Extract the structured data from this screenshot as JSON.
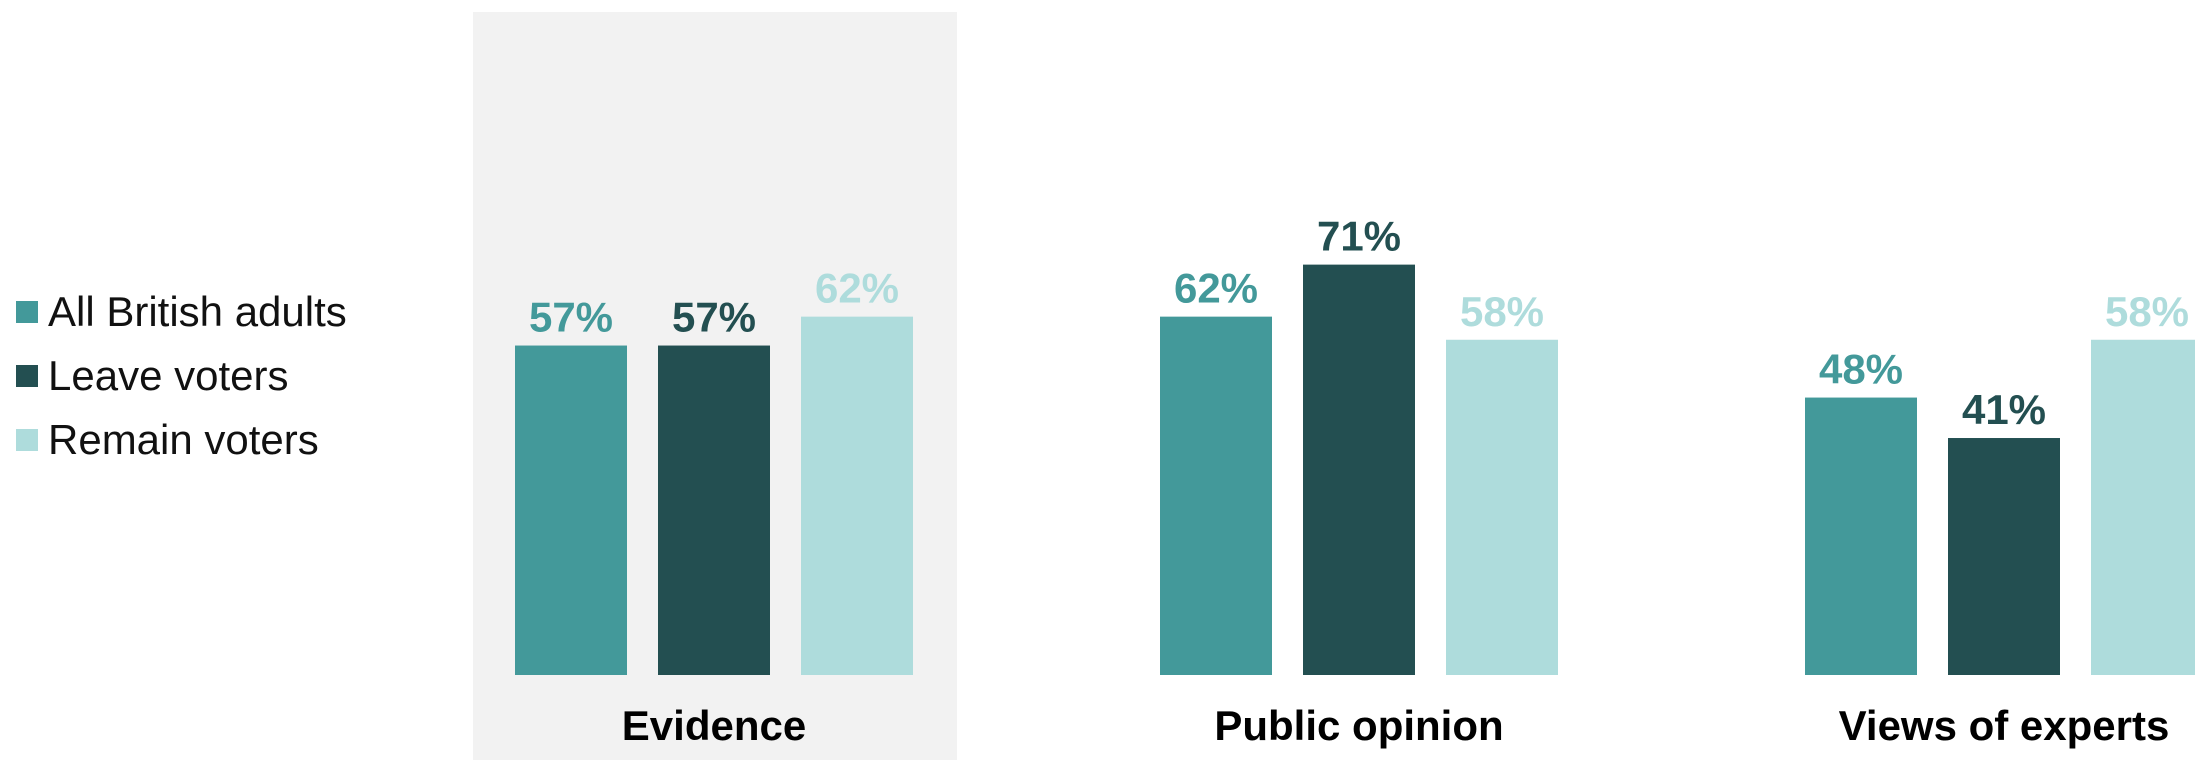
{
  "chart_data": {
    "type": "bar",
    "categories": [
      "Evidence",
      "Public opinion",
      "Views of experts"
    ],
    "series": [
      {
        "name": "All British adults",
        "values": [
          57,
          62,
          48
        ],
        "color": "#43999A"
      },
      {
        "name": "Leave voters",
        "values": [
          57,
          71,
          41
        ],
        "color": "#234F51"
      },
      {
        "name": "Remain voters",
        "values": [
          62,
          58,
          58
        ],
        "color": "#AEDCDC"
      }
    ],
    "value_suffix": "%",
    "ylim": [
      0,
      100
    ],
    "legend_position": "left",
    "highlighted_category": "Evidence",
    "highlight_color": "#F2F2F2",
    "title": "",
    "xlabel": "",
    "ylabel": "",
    "grid": false
  }
}
